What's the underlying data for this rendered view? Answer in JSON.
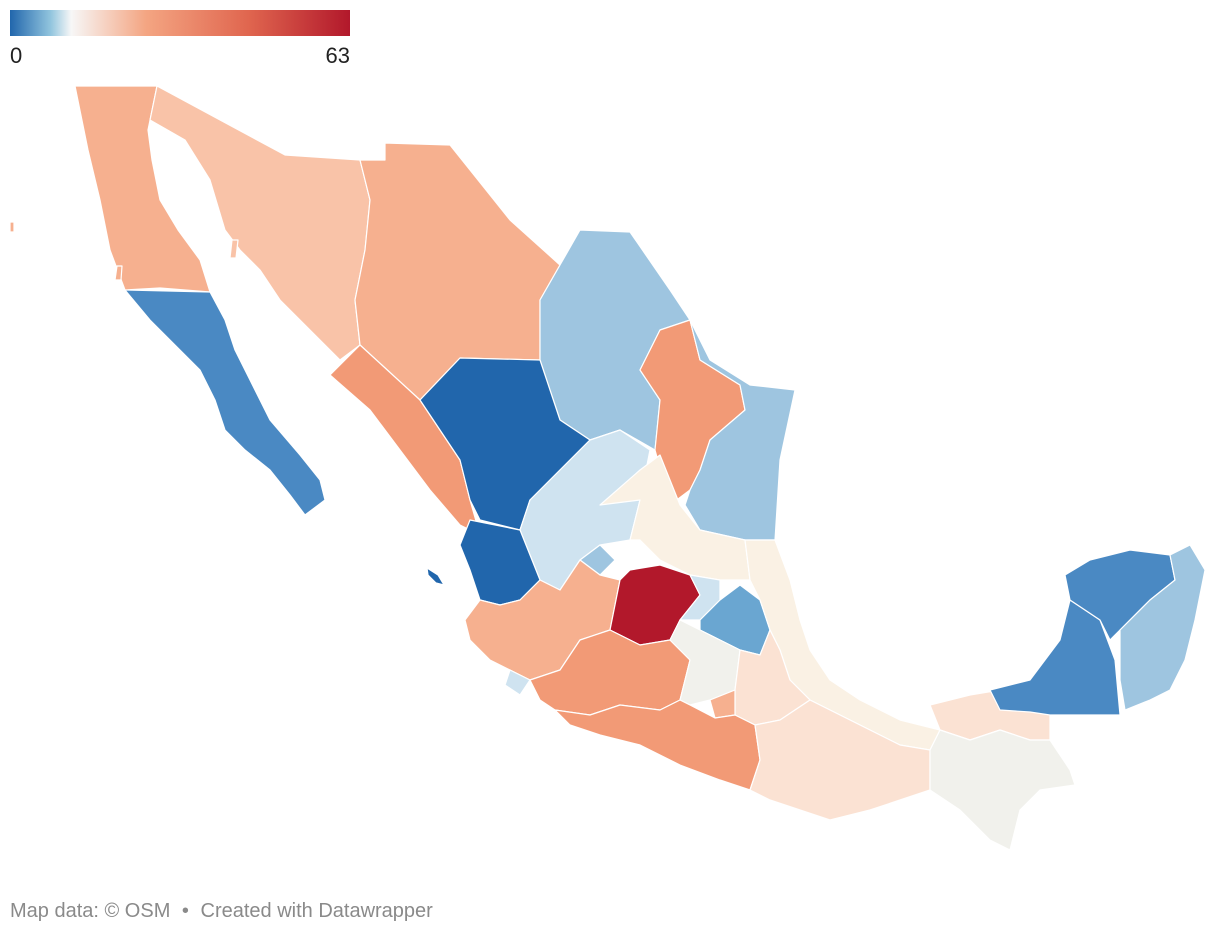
{
  "legend": {
    "min_label": "0",
    "max_label": "63",
    "gradient_colors": [
      "#2166ac",
      "#92c5de",
      "#f7f7f7",
      "#f4a582",
      "#e0664f",
      "#b2182b"
    ]
  },
  "footer": {
    "map_credit": "Map data: © OSM",
    "separator": "•",
    "created_with": "Created with Datawrapper"
  },
  "colors": {
    "dark_blue": "#2166ac",
    "mid_blue": "#4a89c3",
    "steel_blue": "#6aa6d1",
    "light_blue": "#9ec5e0",
    "pale_blue": "#cfe3f0",
    "neutral_gray": "#f1f1ec",
    "cream": "#faf1e4",
    "pale_peach": "#fbe2d3",
    "light_salmon": "#f9c3a8",
    "salmon": "#f6b08f",
    "deep_salmon": "#f29a76",
    "dark_red": "#b2182b"
  },
  "regions": [
    {
      "name": "baja-california",
      "color": "#f6b08f"
    },
    {
      "name": "baja-california-sur",
      "color": "#4a89c3"
    },
    {
      "name": "sonora",
      "color": "#f9c3a8"
    },
    {
      "name": "chihuahua",
      "color": "#f6b08f"
    },
    {
      "name": "coahuila",
      "color": "#9ec5e0"
    },
    {
      "name": "nuevo-leon",
      "color": "#f29a76"
    },
    {
      "name": "tamaulipas",
      "color": "#9ec5e0"
    },
    {
      "name": "sinaloa",
      "color": "#f29a76"
    },
    {
      "name": "durango",
      "color": "#2166ac"
    },
    {
      "name": "zacatecas",
      "color": "#cfe3f0"
    },
    {
      "name": "san-luis-potosi",
      "color": "#faf1e4"
    },
    {
      "name": "nayarit",
      "color": "#2166ac"
    },
    {
      "name": "aguascalientes",
      "color": "#9ec5e0"
    },
    {
      "name": "jalisco",
      "color": "#f6b08f"
    },
    {
      "name": "guanajuato",
      "color": "#b2182b"
    },
    {
      "name": "queretaro",
      "color": "#cfe3f0"
    },
    {
      "name": "hidalgo",
      "color": "#6aa6d1"
    },
    {
      "name": "veracruz",
      "color": "#faf1e4"
    },
    {
      "name": "colima",
      "color": "#cfe3f0"
    },
    {
      "name": "michoacan",
      "color": "#f29a76"
    },
    {
      "name": "estado-de-mexico",
      "color": "#f1f1ec"
    },
    {
      "name": "tlaxcala",
      "color": "#4a89c3"
    },
    {
      "name": "puebla",
      "color": "#fbe2d3"
    },
    {
      "name": "morelos",
      "color": "#f6b08f"
    },
    {
      "name": "guerrero",
      "color": "#f29a76"
    },
    {
      "name": "oaxaca",
      "color": "#fbe2d3"
    },
    {
      "name": "tabasco",
      "color": "#fbe2d3"
    },
    {
      "name": "chiapas",
      "color": "#f1f1ec"
    },
    {
      "name": "campeche",
      "color": "#4a89c3"
    },
    {
      "name": "yucatan",
      "color": "#4a89c3"
    },
    {
      "name": "quintana-roo",
      "color": "#9ec5e0"
    }
  ]
}
